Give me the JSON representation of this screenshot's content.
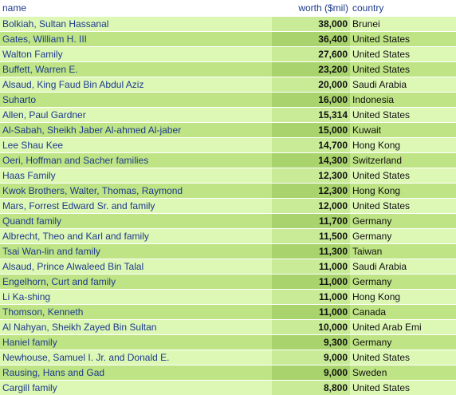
{
  "table": {
    "headers": {
      "name": "name",
      "worth": "worth ($mil)",
      "country": "country"
    },
    "row_colors": {
      "odd_light": "#ddf7b5",
      "odd_worth": "#c9eb98",
      "even_light": "#bfe485",
      "even_worth": "#a9d36c",
      "link_text": "#1c3a8c"
    },
    "rows": [
      {
        "name": "Bolkiah, Sultan Hassanal",
        "worth": "38,000",
        "country": "Brunei"
      },
      {
        "name": "Gates, William H. III",
        "worth": "36,400",
        "country": "United States"
      },
      {
        "name": "Walton Family",
        "worth": "27,600",
        "country": "United States"
      },
      {
        "name": "Buffett, Warren E.",
        "worth": "23,200",
        "country": "United States"
      },
      {
        "name": "Alsaud, King Faud Bin Abdul Aziz",
        "worth": "20,000",
        "country": "Saudi Arabia"
      },
      {
        "name": "Suharto",
        "worth": "16,000",
        "country": "Indonesia"
      },
      {
        "name": "Allen, Paul Gardner",
        "worth": "15,314",
        "country": "United States"
      },
      {
        "name": "Al-Sabah, Sheikh Jaber Al-ahmed Al-jaber",
        "worth": "15,000",
        "country": "Kuwait"
      },
      {
        "name": "Lee Shau Kee",
        "worth": "14,700",
        "country": "Hong Kong"
      },
      {
        "name": "Oeri, Hoffman and Sacher families",
        "worth": "14,300",
        "country": "Switzerland"
      },
      {
        "name": "Haas Family",
        "worth": "12,300",
        "country": "United States"
      },
      {
        "name": "Kwok Brothers, Walter, Thomas, Raymond",
        "worth": "12,300",
        "country": "Hong Kong"
      },
      {
        "name": "Mars, Forrest Edward Sr. and family",
        "worth": "12,000",
        "country": "United States"
      },
      {
        "name": "Quandt family",
        "worth": "11,700",
        "country": "Germany"
      },
      {
        "name": "Albrecht, Theo and Karl and family",
        "worth": "11,500",
        "country": "Germany"
      },
      {
        "name": "Tsai Wan-lin and family",
        "worth": "11,300",
        "country": "Taiwan"
      },
      {
        "name": "Alsaud, Prince Alwaleed Bin Talal",
        "worth": "11,000",
        "country": "Saudi Arabia"
      },
      {
        "name": "Engelhorn, Curt and family",
        "worth": "11,000",
        "country": "Germany"
      },
      {
        "name": "Li Ka-shing",
        "worth": "11,000",
        "country": "Hong Kong"
      },
      {
        "name": "Thomson, Kenneth",
        "worth": "11,000",
        "country": "Canada"
      },
      {
        "name": "Al Nahyan, Sheikh Zayed Bin Sultan",
        "worth": "10,000",
        "country": "United Arab Emi"
      },
      {
        "name": "Haniel family",
        "worth": "9,300",
        "country": "Germany"
      },
      {
        "name": "Newhouse, Samuel I. Jr. and Donald E.",
        "worth": "9,000",
        "country": "United States"
      },
      {
        "name": "Rausing, Hans and Gad",
        "worth": "9,000",
        "country": "Sweden"
      },
      {
        "name": "Cargill family",
        "worth": "8,800",
        "country": "United States"
      }
    ]
  }
}
